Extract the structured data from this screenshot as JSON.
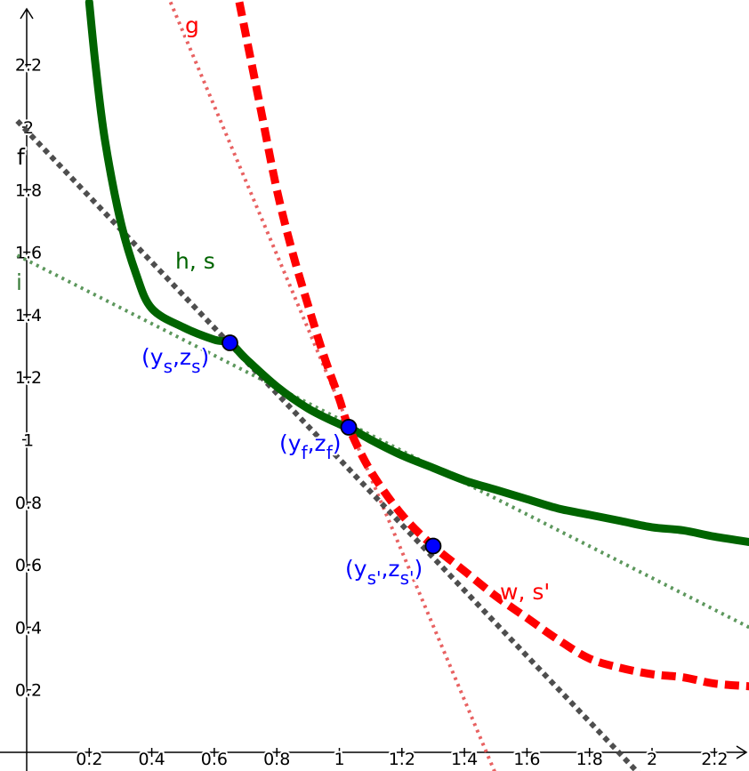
{
  "chart_data": {
    "type": "line",
    "title": "",
    "xlabel": "",
    "ylabel": "",
    "xlim": [
      -0.03,
      2.33
    ],
    "ylim": [
      -0.07,
      2.4
    ],
    "grid": false,
    "x_ticks": [
      {
        "value": 0.2,
        "label": "0.2"
      },
      {
        "value": 0.4,
        "label": "0.4"
      },
      {
        "value": 0.6,
        "label": "0.6"
      },
      {
        "value": 0.8,
        "label": "0.8"
      },
      {
        "value": 1.0,
        "label": "1"
      },
      {
        "value": 1.2,
        "label": "1.2"
      },
      {
        "value": 1.4,
        "label": "1.4"
      },
      {
        "value": 1.6,
        "label": "1.6"
      },
      {
        "value": 1.8,
        "label": "1.8"
      },
      {
        "value": 2.0,
        "label": "2"
      },
      {
        "value": 2.2,
        "label": "2.2"
      }
    ],
    "y_ticks": [
      {
        "value": 0.2,
        "label": "0.2"
      },
      {
        "value": 0.4,
        "label": "0.4"
      },
      {
        "value": 0.6,
        "label": "0.6"
      },
      {
        "value": 0.8,
        "label": "0.8"
      },
      {
        "value": 1.0,
        "label": "1"
      },
      {
        "value": 1.2,
        "label": "1.2"
      },
      {
        "value": 1.4,
        "label": "1.4"
      },
      {
        "value": 1.6,
        "label": "1.6"
      },
      {
        "value": 1.8,
        "label": "1.8"
      },
      {
        "value": 2.0,
        "label": "2"
      },
      {
        "value": 2.2,
        "label": "2.2"
      }
    ],
    "series": [
      {
        "name": "h, s",
        "kind": "curve",
        "color": "#006400",
        "style": "solid",
        "points": [
          [
            0.2,
            2.4
          ],
          [
            0.22,
            2.2
          ],
          [
            0.25,
            1.96
          ],
          [
            0.3,
            1.7
          ],
          [
            0.35,
            1.53
          ],
          [
            0.4,
            1.42
          ],
          [
            0.5,
            1.36
          ],
          [
            0.6,
            1.32
          ],
          [
            0.65,
            1.31
          ],
          [
            0.7,
            1.26
          ],
          [
            0.8,
            1.17
          ],
          [
            0.9,
            1.1
          ],
          [
            1.0,
            1.05
          ],
          [
            1.03,
            1.04
          ],
          [
            1.1,
            1.0
          ],
          [
            1.2,
            0.95
          ],
          [
            1.3,
            0.91
          ],
          [
            1.4,
            0.87
          ],
          [
            1.5,
            0.84
          ],
          [
            1.6,
            0.81
          ],
          [
            1.7,
            0.78
          ],
          [
            1.8,
            0.76
          ],
          [
            1.9,
            0.74
          ],
          [
            2.0,
            0.72
          ],
          [
            2.1,
            0.71
          ],
          [
            2.2,
            0.69
          ],
          [
            2.33,
            0.67
          ]
        ]
      },
      {
        "name": "w, s'",
        "kind": "curve",
        "color": "#ff0000",
        "style": "dashed",
        "points": [
          [
            0.68,
            2.4
          ],
          [
            0.7,
            2.3
          ],
          [
            0.75,
            2.05
          ],
          [
            0.8,
            1.8
          ],
          [
            0.85,
            1.6
          ],
          [
            0.9,
            1.43
          ],
          [
            0.95,
            1.27
          ],
          [
            1.0,
            1.13
          ],
          [
            1.03,
            1.04
          ],
          [
            1.1,
            0.9
          ],
          [
            1.2,
            0.76
          ],
          [
            1.3,
            0.66
          ],
          [
            1.4,
            0.58
          ],
          [
            1.5,
            0.5
          ],
          [
            1.6,
            0.43
          ],
          [
            1.7,
            0.36
          ],
          [
            1.8,
            0.3
          ],
          [
            1.9,
            0.27
          ],
          [
            2.0,
            0.25
          ],
          [
            2.1,
            0.24
          ],
          [
            2.2,
            0.22
          ],
          [
            2.33,
            0.21
          ]
        ]
      },
      {
        "name": "f",
        "kind": "line",
        "color": "#444444",
        "style": "dashdot",
        "points": [
          [
            -0.03,
            2.02
          ],
          [
            1.96,
            -0.07
          ]
        ]
      },
      {
        "name": "g",
        "kind": "line",
        "color": "#e65050",
        "style": "dotted",
        "points": [
          [
            0.46,
            2.4
          ],
          [
            1.5,
            -0.07
          ]
        ]
      },
      {
        "name": "i",
        "kind": "line",
        "color": "#4a8c4a",
        "style": "dotted",
        "points": [
          [
            -0.03,
            1.59
          ],
          [
            2.33,
            0.39
          ]
        ]
      }
    ],
    "points": [
      {
        "name": "s",
        "x": 0.65,
        "y": 1.31,
        "color": "#0000ff"
      },
      {
        "name": "f",
        "x": 1.03,
        "y": 1.04,
        "color": "#0000ff"
      },
      {
        "name": "s'",
        "x": 1.3,
        "y": 0.66,
        "color": "#0000ff"
      }
    ],
    "labels": {
      "g": "g",
      "f": "f",
      "i": "i",
      "h_s": "h, s",
      "w_s": "w, s'",
      "ys_zs": {
        "open": "(y",
        "sub1": "s",
        "comma": ",z",
        "sub2": "s",
        "close": ")"
      },
      "yf_zf": {
        "open": "(y",
        "sub1": "f",
        "comma": ",z",
        "sub2": "f",
        "close": ")"
      },
      "ysp_zsp": {
        "open": "(y",
        "sub1": "s'",
        "comma": ",z",
        "sub2": "s'",
        "close": ")"
      }
    },
    "colors": {
      "label_green": "#006400",
      "label_red": "#ff0000",
      "label_blue": "#0000ff",
      "label_black": "#000000"
    }
  }
}
